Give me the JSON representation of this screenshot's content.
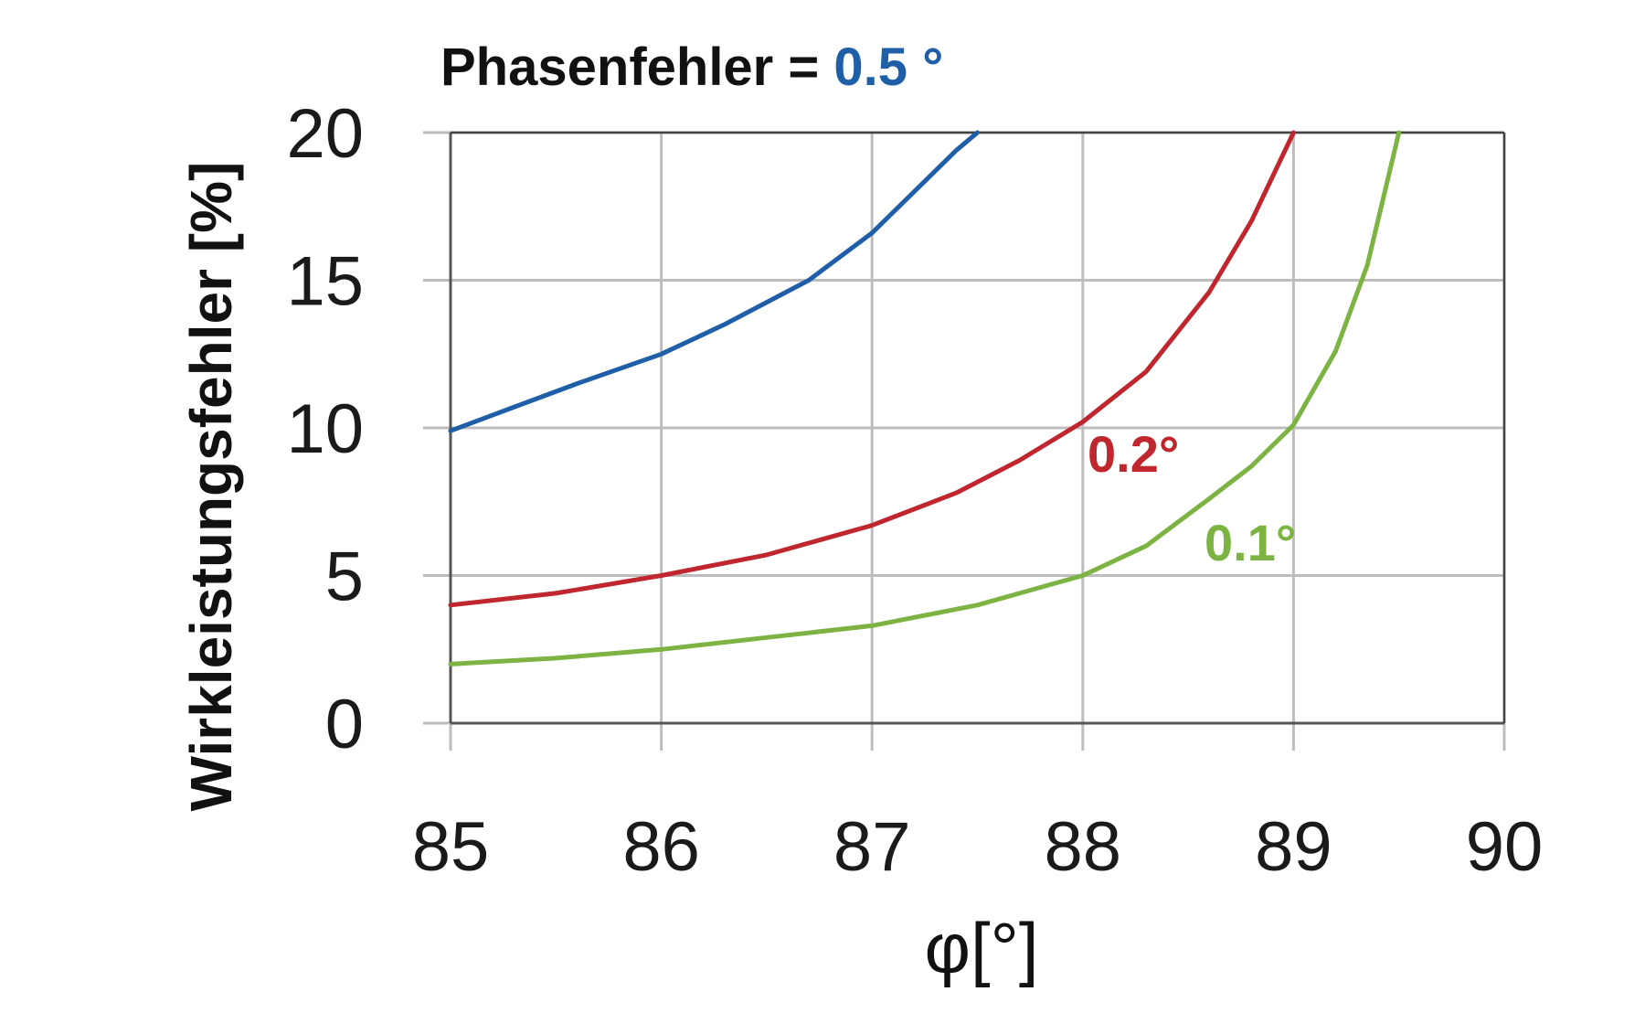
{
  "chart_data": {
    "type": "line",
    "title": {
      "prefix": "Phasenfehler = ",
      "highlight": "0.5 °",
      "highlight_color": "#1f5fa8"
    },
    "xlabel": "φ[°]",
    "ylabel": "Wirkleistungsfehler   [%]",
    "xlim": [
      85,
      90
    ],
    "ylim": [
      0,
      20
    ],
    "xticks": [
      "85",
      "86",
      "87",
      "88",
      "89",
      "90"
    ],
    "yticks": [
      "0",
      "5",
      "10",
      "15",
      "20"
    ],
    "grid": true,
    "series": [
      {
        "key": "s05",
        "color": "#1f5fa8",
        "x": [
          85,
          85.3,
          85.6,
          86,
          86.3,
          86.7,
          87,
          87.2,
          87.4,
          87.5
        ],
        "y": [
          9.9,
          10.7,
          11.5,
          12.5,
          13.5,
          15.0,
          16.6,
          18.0,
          19.4,
          20.0
        ]
      },
      {
        "key": "s02",
        "name": "0.2°",
        "color": "#c0262d",
        "x": [
          85,
          85.5,
          86,
          86.5,
          87,
          87.4,
          87.7,
          88,
          88.3,
          88.6,
          88.8,
          89
        ],
        "y": [
          4.0,
          4.4,
          5.0,
          5.7,
          6.7,
          7.8,
          8.9,
          10.2,
          11.9,
          14.6,
          17.0,
          20.0
        ]
      },
      {
        "key": "s01",
        "name": "0.1°",
        "color": "#7cb342",
        "x": [
          85,
          85.5,
          86,
          86.5,
          87,
          87.5,
          88,
          88.3,
          88.6,
          88.8,
          89,
          89.2,
          89.35,
          89.5
        ],
        "y": [
          2.0,
          2.2,
          2.5,
          2.9,
          3.3,
          4.0,
          5.0,
          6.0,
          7.6,
          8.7,
          10.1,
          12.6,
          15.5,
          20.0
        ]
      }
    ]
  }
}
